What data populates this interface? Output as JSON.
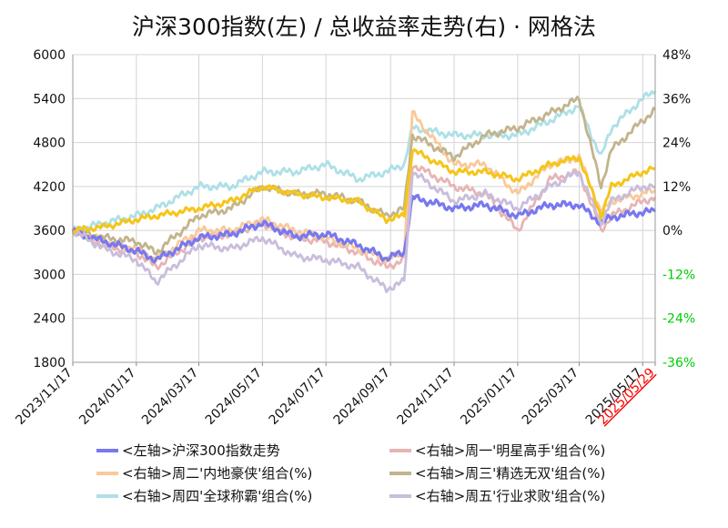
{
  "chart_data": {
    "type": "line",
    "title": "沪深300指数(左) / 总收益率走势(右) · 网格法",
    "left_axis": {
      "ylim": [
        1800,
        6000
      ],
      "ticks": [
        "6000",
        "5400",
        "4800",
        "4200",
        "3600",
        "3000",
        "2400",
        "1800"
      ]
    },
    "right_axis": {
      "ylim": [
        -36,
        48
      ],
      "unit": "%",
      "ticks": [
        "48%",
        "36%",
        "24%",
        "12%",
        "0%",
        "-12%",
        "-24%",
        "-36%"
      ]
    },
    "x_ticks": [
      "2023/11/17",
      "2024/01/17",
      "2024/03/17",
      "2024/05/17",
      "2024/07/17",
      "2024/09/17",
      "2024/11/17",
      "2025/01/17",
      "2025/03/17",
      "2025/05/17",
      "2025/05/29"
    ],
    "grid": true,
    "legend_position": "bottom",
    "colors": {
      "hs300": "#7878f0",
      "mon": "#e8b4b4",
      "tue": "#f9c99a",
      "wed": "#c2b48c",
      "thu": "#ade0e6",
      "fri": "#c9bddc",
      "overlay": "#f5c518",
      "last_date": "#ff0000",
      "neg_tick": "#00cc00"
    },
    "x": [
      "2023/11/17",
      "2023/12/17",
      "2024/01/17",
      "2024/02/05",
      "2024/03/17",
      "2024/04/17",
      "2024/05/17",
      "2024/06/17",
      "2024/07/17",
      "2024/08/17",
      "2024/09/13",
      "2024/09/30",
      "2024/10/08",
      "2024/11/17",
      "2024/12/17",
      "2025/01/17",
      "2025/02/17",
      "2025/03/17",
      "2025/04/07",
      "2025/04/17",
      "2025/05/17",
      "2025/05/29"
    ],
    "series": [
      {
        "name": "<左轴>沪深300指数走势",
        "axis": "left",
        "color": "#7878f0",
        "values": [
          3580,
          3450,
          3320,
          3200,
          3500,
          3550,
          3700,
          3520,
          3550,
          3400,
          3220,
          3300,
          4050,
          3900,
          3950,
          3800,
          3950,
          3950,
          3700,
          3780,
          3850,
          3860
        ]
      },
      {
        "name": "<右轴>周一'明星高手'组合(%)",
        "axis": "right",
        "color": "#e8b4b4",
        "values": [
          0,
          -4,
          -6,
          -10,
          -2,
          -1,
          2,
          -2,
          -3,
          -6,
          -10,
          -8,
          18,
          12,
          10,
          0,
          14,
          16,
          0,
          4,
          8,
          9
        ]
      },
      {
        "name": "<右轴>周二'内地豪侠'组合(%)",
        "axis": "right",
        "color": "#f9c99a",
        "values": [
          0,
          -3,
          -5,
          -8,
          0,
          0,
          3,
          0,
          -2,
          -5,
          -8,
          -6,
          32,
          18,
          18,
          10,
          18,
          20,
          5,
          8,
          10,
          11
        ]
      },
      {
        "name": "<右轴>周三'精选无双'组合(%)",
        "axis": "right",
        "color": "#c2b48c",
        "values": [
          0,
          -2,
          -3,
          -6,
          4,
          6,
          12,
          10,
          10,
          8,
          4,
          6,
          26,
          20,
          26,
          28,
          32,
          36,
          12,
          22,
          30,
          33
        ]
      },
      {
        "name": "<右轴>周四'全球称霸'组合(%)",
        "axis": "right",
        "color": "#ade0e6",
        "values": [
          0,
          2,
          4,
          6,
          12,
          12,
          16,
          16,
          18,
          14,
          16,
          18,
          28,
          26,
          26,
          26,
          30,
          34,
          20,
          28,
          36,
          38
        ]
      },
      {
        "name": "<右轴>周五'行业求败'组合(%)",
        "axis": "right",
        "color": "#c9bddc",
        "values": [
          0,
          -5,
          -8,
          -14,
          -4,
          -5,
          -2,
          -7,
          -8,
          -10,
          -16,
          -14,
          16,
          8,
          10,
          6,
          12,
          16,
          2,
          8,
          12,
          12
        ]
      }
    ],
    "overlay_line": {
      "axis": "right",
      "color": "#f5c518",
      "values": [
        0,
        1,
        3,
        4,
        6,
        8,
        12,
        10,
        9,
        8,
        3,
        4,
        22,
        16,
        16,
        14,
        18,
        20,
        4,
        12,
        16,
        17
      ]
    }
  }
}
